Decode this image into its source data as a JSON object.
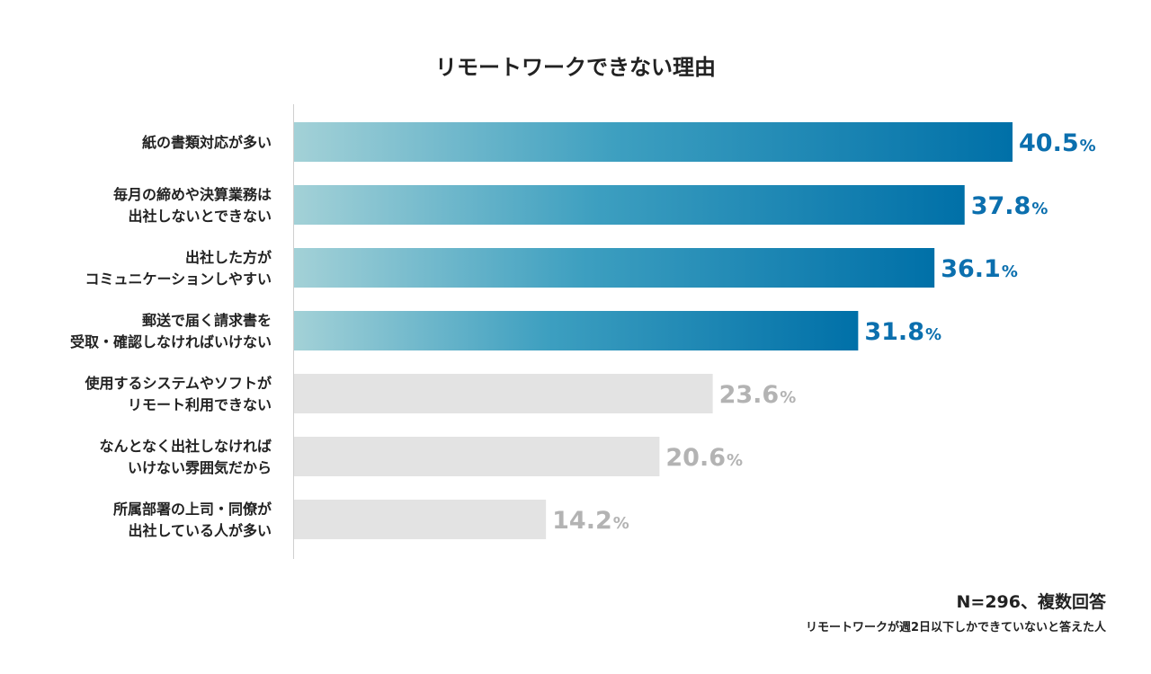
{
  "chart_data": {
    "type": "bar",
    "orientation": "horizontal",
    "title": "リモートワークできない理由",
    "categories": [
      [
        "紙の書類対応が多い"
      ],
      [
        "毎月の締めや決算業務は",
        "出社しないとできない"
      ],
      [
        "出社した方が",
        "コミュニケーションしやすい"
      ],
      [
        "郵送で届く請求書を",
        "受取・確認しなければいけない"
      ],
      [
        "使用するシステムやソフトが",
        "リモート利用できない"
      ],
      [
        "なんとなく出社しなければ",
        "いけない雰囲気だから"
      ],
      [
        "所属部署の上司・同僚が",
        "出社している人が多い"
      ]
    ],
    "values": [
      40.5,
      37.8,
      36.1,
      31.8,
      23.6,
      20.6,
      14.2
    ],
    "value_suffix": "%",
    "highlighted": [
      true,
      true,
      true,
      true,
      false,
      false,
      false
    ],
    "xlim": [
      0,
      50
    ],
    "xlabel": "",
    "ylabel": "",
    "grid": false,
    "colors": {
      "highlight_start": "#a3d1d7",
      "highlight_end": "#0070a8",
      "highlight_label": "#0b6fae",
      "muted_bar": "#e3e3e3",
      "muted_label": "#b3b3b3",
      "axis_line": "#cfcfcf"
    },
    "note": {
      "main": "N=296、複数回答",
      "sub": "リモートワークが週2日以下しかできていないと答えた人"
    }
  }
}
